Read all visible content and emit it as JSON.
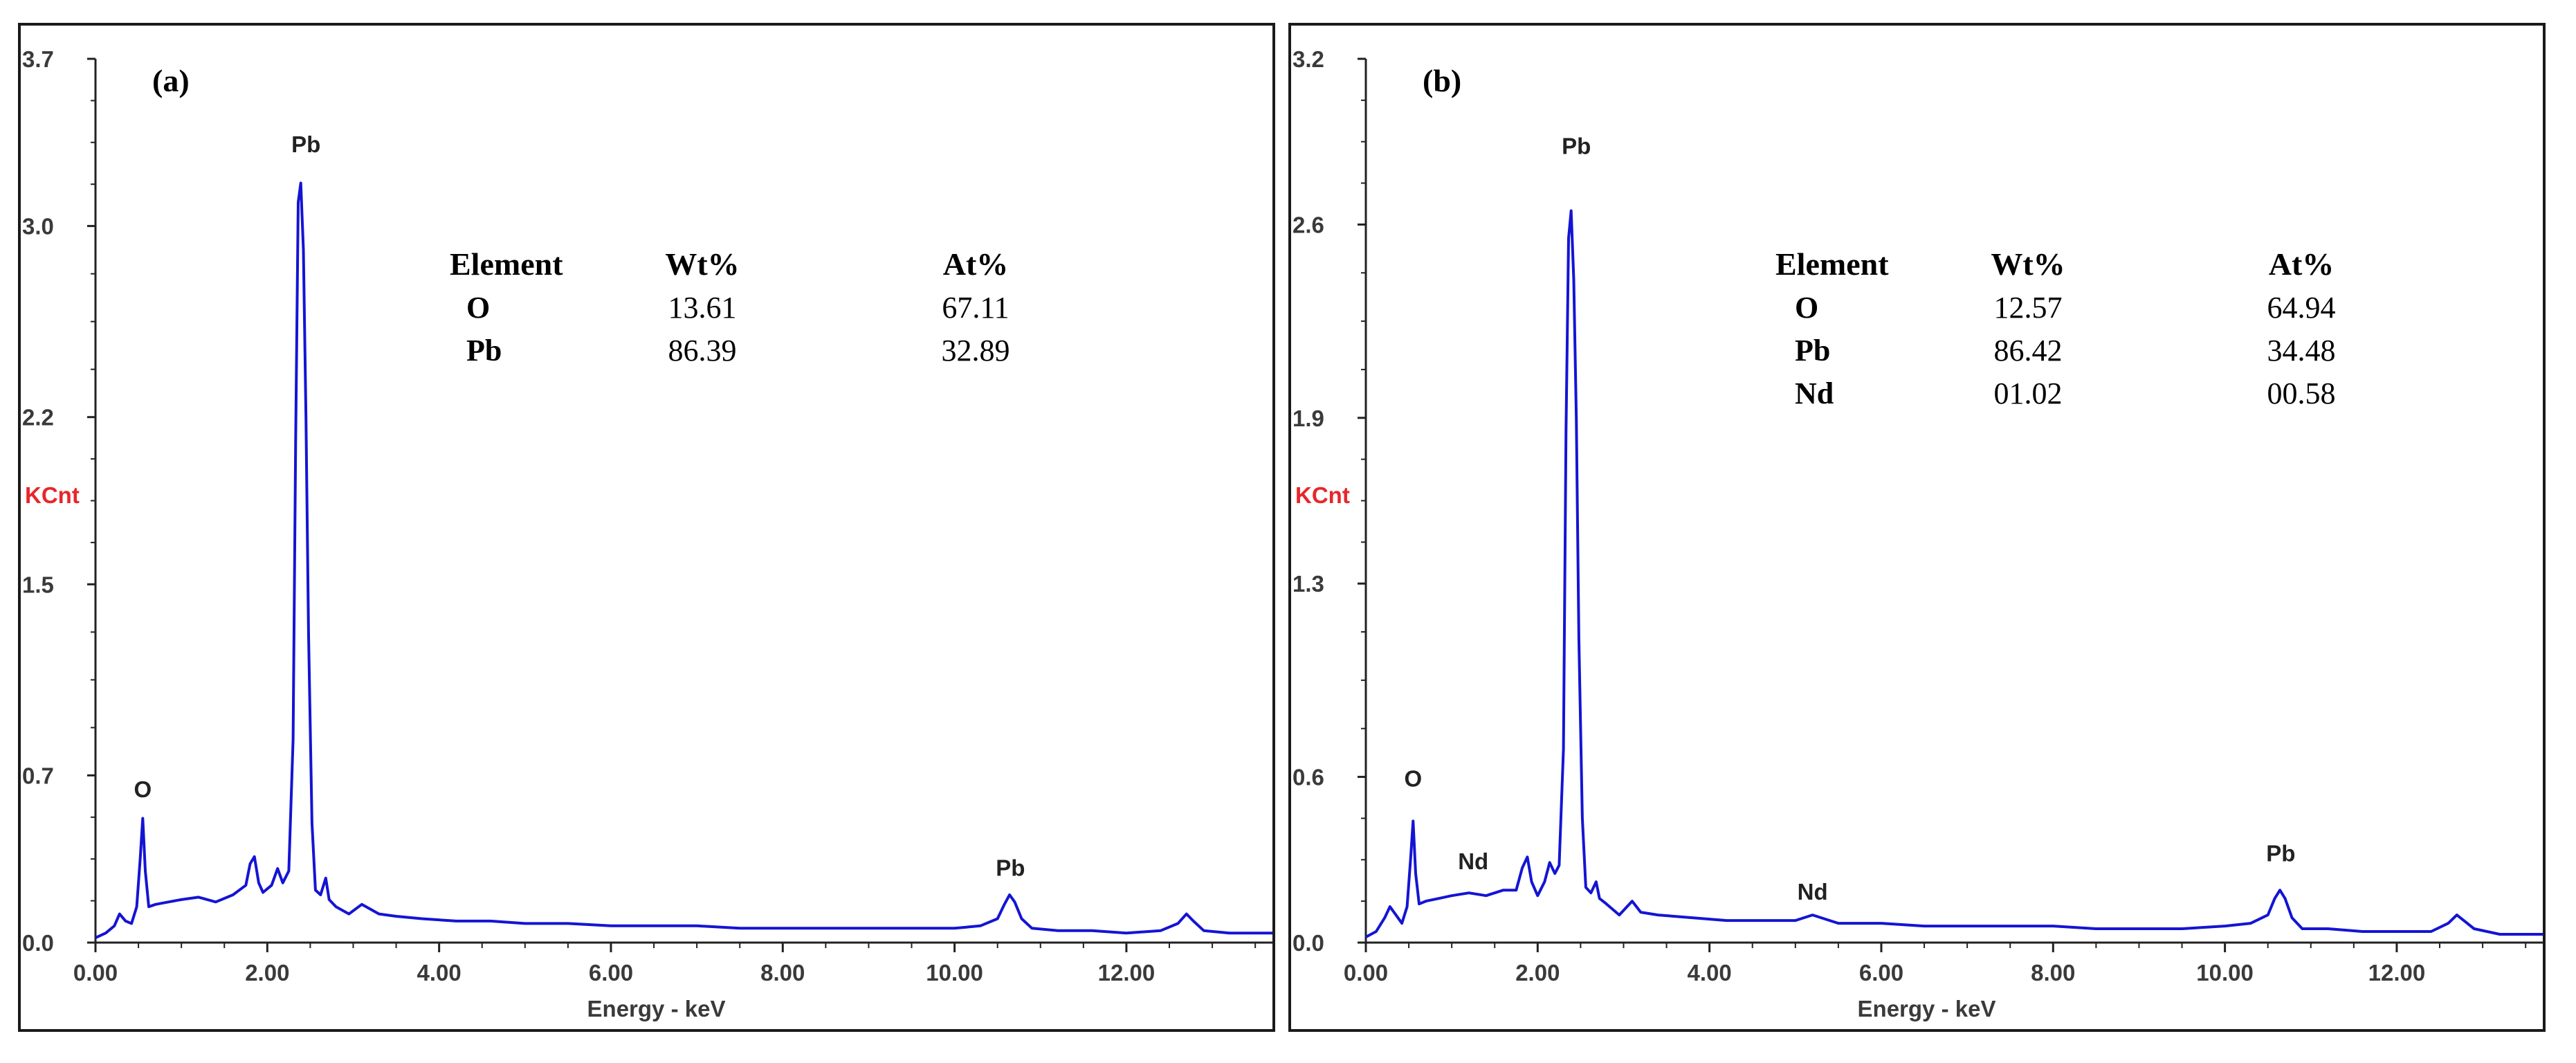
{
  "chart_data": [
    {
      "type": "line",
      "panel_label": "(a)",
      "ylabel": "KCnt",
      "xlabel": "Energy - keV",
      "xlim": [
        0,
        13.7
      ],
      "ylim": [
        0,
        3.7
      ],
      "x_ticks": [
        "0.00",
        "2.00",
        "4.00",
        "6.00",
        "8.00",
        "10.00",
        "12.00"
      ],
      "y_ticks": [
        "0.0",
        "0.7",
        "1.5",
        "2.2",
        "3.0",
        "3.7"
      ],
      "line_color": "#1414d4",
      "annotations": [
        {
          "text": "O",
          "x": 0.55,
          "y": 0.58
        },
        {
          "text": "Pb",
          "x": 2.45,
          "y": 3.28
        },
        {
          "text": "Pb",
          "x": 10.65,
          "y": 0.25
        }
      ],
      "table": {
        "headers": [
          "Element",
          "Wt%",
          "At%"
        ],
        "rows": [
          [
            "O",
            "13.61",
            "67.11"
          ],
          [
            "Pb",
            "86.39",
            "32.89"
          ]
        ]
      },
      "series": [
        {
          "x": [
            0.0,
            0.12,
            0.22,
            0.28,
            0.35,
            0.42,
            0.48,
            0.52,
            0.55,
            0.58,
            0.62,
            0.7,
            0.85,
            1.0,
            1.2,
            1.4,
            1.6,
            1.75,
            1.8,
            1.85,
            1.9,
            1.95,
            2.05,
            2.12,
            2.18,
            2.25,
            2.3,
            2.33,
            2.36,
            2.39,
            2.42,
            2.45,
            2.48,
            2.52,
            2.56,
            2.62,
            2.68,
            2.72,
            2.8,
            2.95,
            3.1,
            3.3,
            3.5,
            3.8,
            4.2,
            4.6,
            5.0,
            5.5,
            6.0,
            6.5,
            7.0,
            7.5,
            8.0,
            8.5,
            9.0,
            9.5,
            10.0,
            10.3,
            10.5,
            10.58,
            10.64,
            10.7,
            10.78,
            10.9,
            11.2,
            11.6,
            12.0,
            12.4,
            12.6,
            12.7,
            12.78,
            12.9,
            13.2,
            13.7
          ],
          "y": [
            0.02,
            0.04,
            0.07,
            0.12,
            0.09,
            0.08,
            0.15,
            0.35,
            0.52,
            0.3,
            0.15,
            0.16,
            0.17,
            0.18,
            0.19,
            0.17,
            0.2,
            0.24,
            0.33,
            0.36,
            0.25,
            0.21,
            0.24,
            0.31,
            0.25,
            0.3,
            0.85,
            2.1,
            3.1,
            3.18,
            2.9,
            2.2,
            1.3,
            0.5,
            0.22,
            0.2,
            0.27,
            0.18,
            0.15,
            0.12,
            0.16,
            0.12,
            0.11,
            0.1,
            0.09,
            0.09,
            0.08,
            0.08,
            0.07,
            0.07,
            0.07,
            0.06,
            0.06,
            0.06,
            0.06,
            0.06,
            0.06,
            0.07,
            0.1,
            0.16,
            0.2,
            0.17,
            0.1,
            0.06,
            0.05,
            0.05,
            0.04,
            0.05,
            0.08,
            0.12,
            0.09,
            0.05,
            0.04,
            0.04
          ]
        }
      ]
    },
    {
      "type": "line",
      "panel_label": "(b)",
      "ylabel": "KCnt",
      "xlabel": "Energy - keV",
      "xlim": [
        0,
        13.7
      ],
      "ylim": [
        0,
        3.2
      ],
      "x_ticks": [
        "0.00",
        "2.00",
        "4.00",
        "6.00",
        "8.00",
        "10.00",
        "12.00"
      ],
      "y_ticks": [
        "0.0",
        "0.6",
        "1.3",
        "1.9",
        "2.6",
        "3.2"
      ],
      "line_color": "#1414d4",
      "annotations": [
        {
          "text": "O",
          "x": 0.55,
          "y": 0.54
        },
        {
          "text": "Nd",
          "x": 1.25,
          "y": 0.24
        },
        {
          "text": "Pb",
          "x": 2.45,
          "y": 2.83
        },
        {
          "text": "Nd",
          "x": 5.2,
          "y": 0.13
        },
        {
          "text": "Pb",
          "x": 10.65,
          "y": 0.27
        }
      ],
      "table": {
        "headers": [
          "Element",
          "Wt%",
          "At%"
        ],
        "rows": [
          [
            "O",
            "12.57",
            "64.94"
          ],
          [
            "Pb",
            "86.42",
            "34.48"
          ],
          [
            "Nd",
            "01.02",
            "00.58"
          ]
        ]
      },
      "series": [
        {
          "x": [
            0.0,
            0.12,
            0.22,
            0.28,
            0.35,
            0.42,
            0.48,
            0.52,
            0.55,
            0.58,
            0.62,
            0.7,
            0.85,
            1.0,
            1.2,
            1.4,
            1.6,
            1.75,
            1.82,
            1.88,
            1.93,
            2.0,
            2.08,
            2.14,
            2.2,
            2.25,
            2.3,
            2.33,
            2.36,
            2.39,
            2.42,
            2.45,
            2.48,
            2.52,
            2.56,
            2.62,
            2.68,
            2.72,
            2.8,
            2.95,
            3.1,
            3.2,
            3.4,
            3.8,
            4.2,
            4.6,
            5.0,
            5.2,
            5.5,
            6.0,
            6.5,
            7.0,
            7.5,
            8.0,
            8.5,
            9.0,
            9.5,
            10.0,
            10.3,
            10.5,
            10.58,
            10.64,
            10.7,
            10.78,
            10.9,
            11.2,
            11.6,
            12.0,
            12.4,
            12.6,
            12.7,
            12.78,
            12.9,
            13.2,
            13.7
          ],
          "y": [
            0.02,
            0.04,
            0.09,
            0.13,
            0.1,
            0.07,
            0.13,
            0.3,
            0.44,
            0.25,
            0.14,
            0.15,
            0.16,
            0.17,
            0.18,
            0.17,
            0.19,
            0.19,
            0.27,
            0.31,
            0.22,
            0.17,
            0.22,
            0.29,
            0.25,
            0.28,
            0.7,
            1.85,
            2.55,
            2.65,
            2.4,
            1.9,
            1.1,
            0.45,
            0.2,
            0.18,
            0.22,
            0.16,
            0.14,
            0.1,
            0.15,
            0.11,
            0.1,
            0.09,
            0.08,
            0.08,
            0.08,
            0.1,
            0.07,
            0.07,
            0.06,
            0.06,
            0.06,
            0.06,
            0.05,
            0.05,
            0.05,
            0.06,
            0.07,
            0.1,
            0.16,
            0.19,
            0.16,
            0.09,
            0.05,
            0.05,
            0.04,
            0.04,
            0.04,
            0.07,
            0.1,
            0.08,
            0.05,
            0.03,
            0.03
          ]
        }
      ]
    }
  ]
}
